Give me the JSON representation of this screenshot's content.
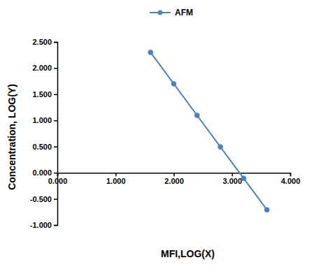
{
  "chart_data": {
    "type": "line",
    "x_label": "MFI,LOG(X)",
    "y_label": "Concentration,  LOG(Y)",
    "x": [
      1.6,
      2.0,
      2.4,
      2.8,
      3.2,
      3.6
    ],
    "series": [
      {
        "name": "AFM",
        "color": "#4f81bd",
        "marker": "circle",
        "line_style": "solid",
        "values": [
          2.301,
          1.699,
          1.097,
          0.495,
          -0.107,
          -0.709
        ]
      }
    ],
    "xlim": [
      0,
      4
    ],
    "xticks": [
      {
        "value": 0,
        "label": "0.000"
      },
      {
        "value": 1,
        "label": "1.000"
      },
      {
        "value": 2,
        "label": "2.000"
      },
      {
        "value": 3,
        "label": "3.000"
      },
      {
        "value": 4,
        "label": "4.000"
      }
    ],
    "ylim": [
      -1,
      2.5
    ],
    "yticks": [
      {
        "value": -1,
        "label": "-1.000"
      },
      {
        "value": -0.5,
        "label": "-0.500"
      },
      {
        "value": 0,
        "label": "0.000"
      },
      {
        "value": 0.5,
        "label": "0.500"
      },
      {
        "value": 1,
        "label": "1.000"
      },
      {
        "value": 1.5,
        "label": "1.500"
      },
      {
        "value": 2,
        "label": "2.000"
      },
      {
        "value": 2.5,
        "label": "2.500"
      }
    ],
    "grid": false,
    "legend": "top"
  }
}
